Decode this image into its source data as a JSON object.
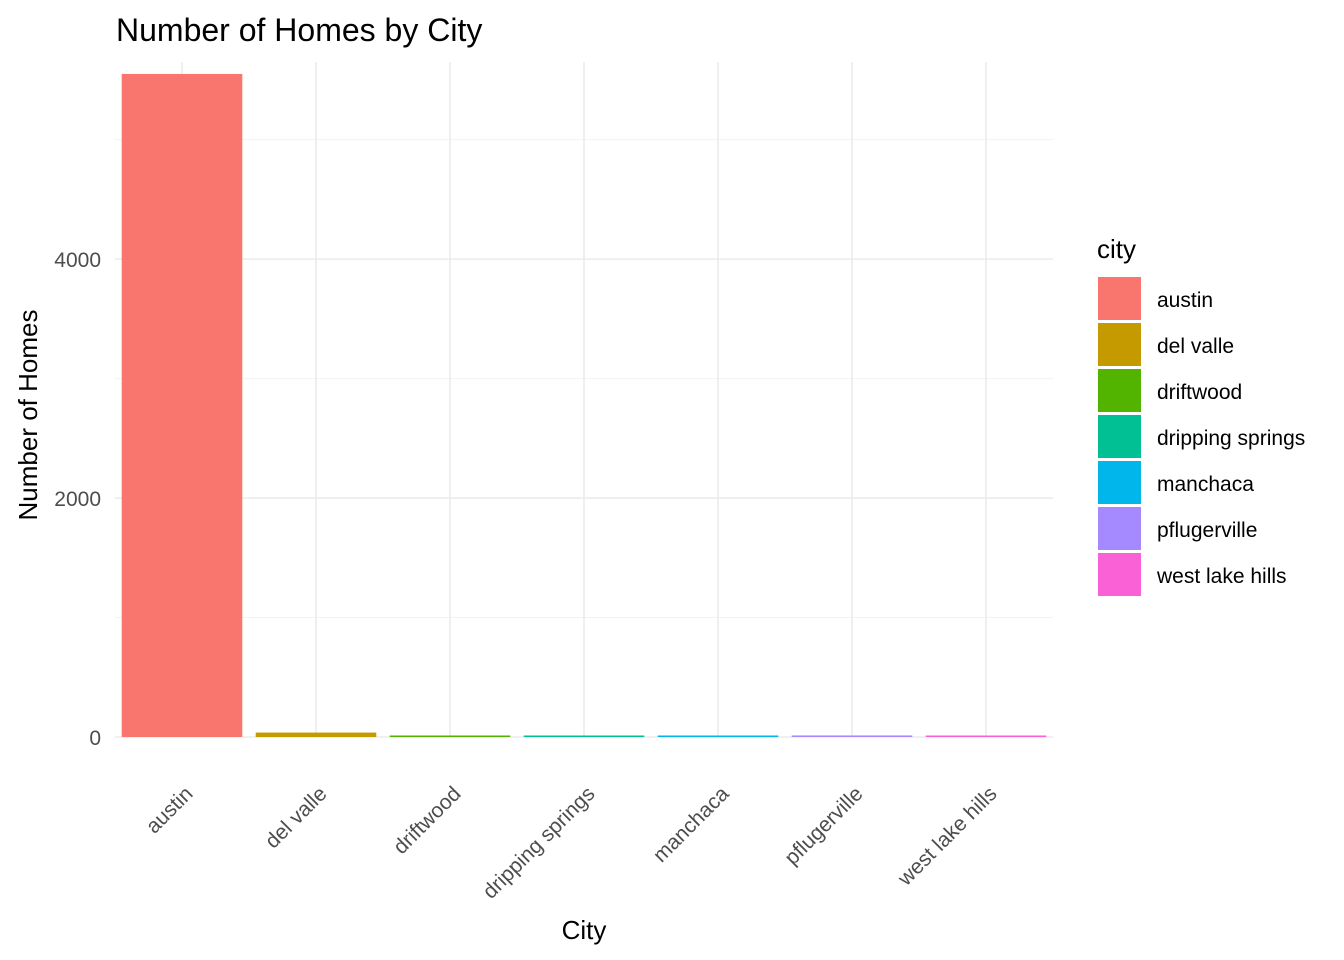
{
  "chart_data": {
    "type": "bar",
    "title": "Number of Homes by City",
    "xlabel": "City",
    "ylabel": "Number of Homes",
    "categories": [
      "austin",
      "del valle",
      "driftwood",
      "dripping springs",
      "manchaca",
      "pflugerville",
      "west lake hills"
    ],
    "values": [
      5550,
      37,
      3,
      1,
      1,
      13,
      1
    ],
    "colors": [
      "#F8766D",
      "#C49A00",
      "#53B400",
      "#00C094",
      "#00B6EB",
      "#A58AFF",
      "#FB61D7"
    ],
    "ylim": [
      0,
      5650
    ],
    "yticks": [
      0,
      2000,
      4000
    ],
    "y_minor_ticks": [
      1000,
      3000,
      5000
    ],
    "grid": true,
    "legend": {
      "title": "city",
      "position": "right",
      "items": [
        "austin",
        "del valle",
        "driftwood",
        "dripping springs",
        "manchaca",
        "pflugerville",
        "west lake hills"
      ]
    }
  }
}
